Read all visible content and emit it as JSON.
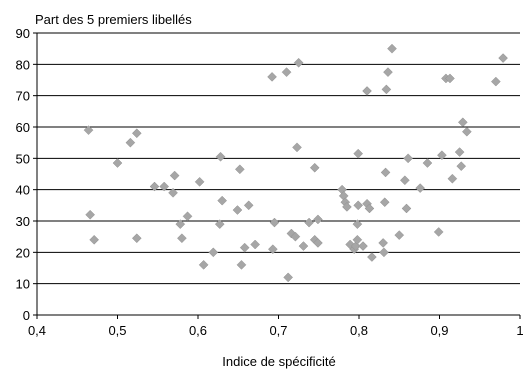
{
  "chart_data": {
    "type": "scatter",
    "title": "",
    "ylabel": "Part des 5 premiers libellés",
    "xlabel": "Indice de spécificité",
    "xlim": [
      0.4,
      1.0
    ],
    "ylim": [
      0,
      90
    ],
    "xticks": [
      "0,4",
      "0,5",
      "0,6",
      "0,7",
      "0,8",
      "0,9",
      "1"
    ],
    "yticks": [
      "0",
      "10",
      "20",
      "30",
      "40",
      "50",
      "60",
      "70",
      "80",
      "90"
    ],
    "grid": "horizontal",
    "marker": "diamond",
    "marker_color": "#a6a6a6",
    "series": [
      {
        "points": [
          [
            0.464,
            59
          ],
          [
            0.466,
            32
          ],
          [
            0.471,
            24
          ],
          [
            0.5,
            48.5
          ],
          [
            0.516,
            55
          ],
          [
            0.524,
            58
          ],
          [
            0.524,
            24.5
          ],
          [
            0.546,
            41
          ],
          [
            0.558,
            41
          ],
          [
            0.569,
            39
          ],
          [
            0.571,
            44.5
          ],
          [
            0.578,
            29
          ],
          [
            0.58,
            24.5
          ],
          [
            0.587,
            31.5
          ],
          [
            0.602,
            42.5
          ],
          [
            0.607,
            16
          ],
          [
            0.619,
            20
          ],
          [
            0.627,
            29
          ],
          [
            0.628,
            50.5
          ],
          [
            0.63,
            36.5
          ],
          [
            0.649,
            33.5
          ],
          [
            0.652,
            46.5
          ],
          [
            0.654,
            16
          ],
          [
            0.658,
            21.5
          ],
          [
            0.663,
            35
          ],
          [
            0.671,
            22.5
          ],
          [
            0.692,
            76
          ],
          [
            0.693,
            21
          ],
          [
            0.695,
            29.5
          ],
          [
            0.71,
            77.5
          ],
          [
            0.712,
            12
          ],
          [
            0.716,
            26
          ],
          [
            0.721,
            25
          ],
          [
            0.723,
            53.5
          ],
          [
            0.725,
            80.5
          ],
          [
            0.731,
            22
          ],
          [
            0.738,
            29.5
          ],
          [
            0.745,
            47
          ],
          [
            0.745,
            24
          ],
          [
            0.749,
            30.5
          ],
          [
            0.749,
            23
          ],
          [
            0.779,
            40
          ],
          [
            0.781,
            38
          ],
          [
            0.783,
            36
          ],
          [
            0.785,
            34.5
          ],
          [
            0.789,
            22.5
          ],
          [
            0.794,
            21
          ],
          [
            0.796,
            22
          ],
          [
            0.798,
            24
          ],
          [
            0.798,
            29
          ],
          [
            0.799,
            35
          ],
          [
            0.799,
            51.5
          ],
          [
            0.805,
            22
          ],
          [
            0.81,
            71.5
          ],
          [
            0.81,
            35.5
          ],
          [
            0.813,
            34
          ],
          [
            0.816,
            18.5
          ],
          [
            0.83,
            23
          ],
          [
            0.831,
            20
          ],
          [
            0.832,
            36
          ],
          [
            0.833,
            45.5
          ],
          [
            0.834,
            72
          ],
          [
            0.836,
            77.5
          ],
          [
            0.841,
            85
          ],
          [
            0.85,
            25.5
          ],
          [
            0.857,
            43
          ],
          [
            0.859,
            34
          ],
          [
            0.861,
            50
          ],
          [
            0.876,
            40.5
          ],
          [
            0.885,
            48.5
          ],
          [
            0.899,
            26.5
          ],
          [
            0.903,
            51
          ],
          [
            0.908,
            75.5
          ],
          [
            0.913,
            75.5
          ],
          [
            0.916,
            43.5
          ],
          [
            0.925,
            52
          ],
          [
            0.927,
            47.5
          ],
          [
            0.929,
            61.5
          ],
          [
            0.934,
            58.5
          ],
          [
            0.97,
            74.5
          ],
          [
            0.979,
            82
          ]
        ]
      }
    ]
  }
}
